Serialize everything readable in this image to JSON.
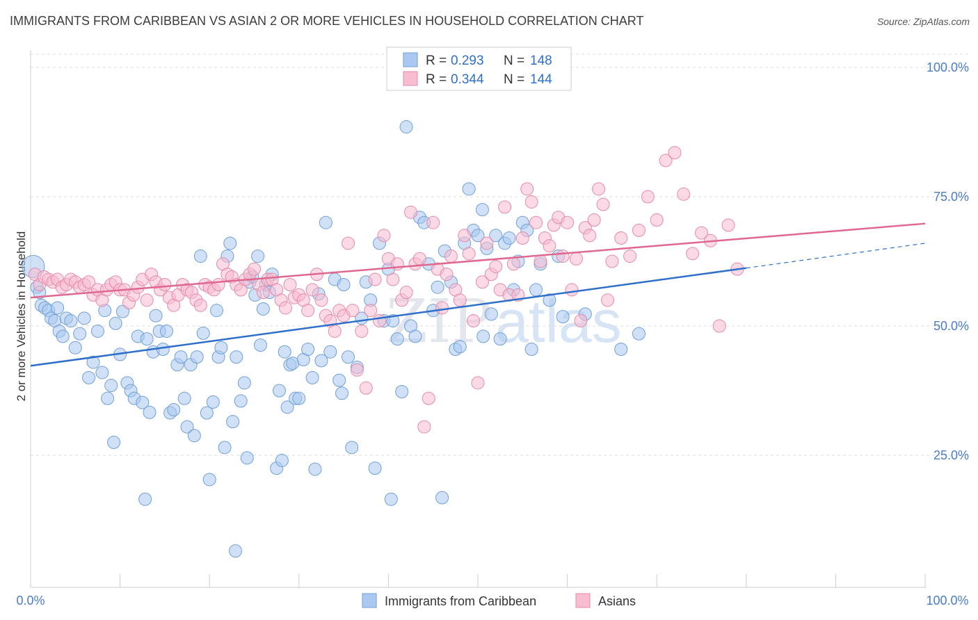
{
  "title": "IMMIGRANTS FROM CARIBBEAN VS ASIAN 2 OR MORE VEHICLES IN HOUSEHOLD CORRELATION CHART",
  "source": "Source: ZipAtlas.com",
  "watermark": {
    "part1": "ZIP",
    "part2": "atlas"
  },
  "legend": {
    "r_label": "R =",
    "n_label": "N =",
    "rows": [
      {
        "r": "0.293",
        "n": "148"
      },
      {
        "r": "0.344",
        "n": "144"
      }
    ]
  },
  "colors": {
    "blue_fill": "#aac8f0",
    "blue_stroke": "#6f9fd8",
    "blue_line": "#2f6fcc",
    "pink_fill": "#f7bcd0",
    "pink_stroke": "#e58aa8",
    "pink_line": "#e0688f",
    "tick_text": "#4a7cc9",
    "grid": "#dddddd"
  },
  "chart_data": {
    "type": "scatter",
    "title": "IMMIGRANTS FROM CARIBBEAN VS ASIAN 2 OR MORE VEHICLES IN HOUSEHOLD CORRELATION CHART",
    "xlabel": "",
    "ylabel": "2 or more Vehicles in Household",
    "xlim": [
      0,
      100
    ],
    "ylim": [
      0,
      105
    ],
    "x_tick_labels": [
      "0.0%",
      "100.0%"
    ],
    "y_ticks": [
      25,
      50,
      75,
      100
    ],
    "y_tick_labels": [
      "25.0%",
      "50.0%",
      "75.0%",
      "100.0%"
    ],
    "grid": "horizontal dashed",
    "legend_position": "top-center",
    "series": [
      {
        "name": "Immigrants from Caribbean",
        "r": 0.293,
        "n": 148,
        "trend": {
          "x0": 0,
          "y0": 42.3,
          "x1": 80,
          "y1": 61.2,
          "dash_to_x": 100,
          "dash_to_y": 66.0
        },
        "points": [
          [
            0.3,
            61.5
          ],
          [
            0.7,
            57.5
          ],
          [
            1.2,
            54
          ],
          [
            1.6,
            53.5
          ],
          [
            2,
            53
          ],
          [
            2.3,
            51.5
          ],
          [
            2.7,
            51
          ],
          [
            3.2,
            49
          ],
          [
            3.6,
            48
          ],
          [
            4,
            51.5
          ],
          [
            4.5,
            51
          ],
          [
            5,
            45.8
          ],
          [
            5.5,
            48.5
          ],
          [
            6,
            51.5
          ],
          [
            6.5,
            40
          ],
          [
            7,
            43
          ],
          [
            7.5,
            49
          ],
          [
            8,
            41
          ],
          [
            8.3,
            53
          ],
          [
            8.6,
            36
          ],
          [
            9,
            38.5
          ],
          [
            9.5,
            50.5
          ],
          [
            10,
            44.5
          ],
          [
            10.3,
            52.8
          ],
          [
            10.8,
            39
          ],
          [
            11.2,
            37.5
          ],
          [
            11.6,
            36
          ],
          [
            12,
            48
          ],
          [
            12.5,
            35.2
          ],
          [
            13,
            47.5
          ],
          [
            13.3,
            33.3
          ],
          [
            13.7,
            45
          ],
          [
            14,
            52
          ],
          [
            14.4,
            49
          ],
          [
            14.8,
            45.5
          ],
          [
            15.2,
            49
          ],
          [
            15.6,
            33.2
          ],
          [
            16,
            33.8
          ],
          [
            16.4,
            42.5
          ],
          [
            16.8,
            44
          ],
          [
            17.2,
            36
          ],
          [
            17.5,
            30.5
          ],
          [
            17.9,
            42.5
          ],
          [
            18.3,
            28.8
          ],
          [
            18.6,
            44
          ],
          [
            19,
            63.5
          ],
          [
            19.3,
            48.6
          ],
          [
            19.7,
            33.2
          ],
          [
            20,
            20.3
          ],
          [
            20.4,
            35.3
          ],
          [
            20.8,
            53
          ],
          [
            21,
            44
          ],
          [
            21.3,
            45.8
          ],
          [
            21.7,
            26.5
          ],
          [
            22,
            63.5
          ],
          [
            22.3,
            66
          ],
          [
            22.6,
            31.5
          ],
          [
            22.9,
            6.5
          ],
          [
            23,
            44
          ],
          [
            23.5,
            35.5
          ],
          [
            23.9,
            39
          ],
          [
            24.2,
            24.5
          ],
          [
            24.5,
            58.5
          ],
          [
            24.8,
            59.5
          ],
          [
            25.1,
            56
          ],
          [
            25.4,
            63.5
          ],
          [
            25.7,
            46.3
          ],
          [
            26,
            53.3
          ],
          [
            26.3,
            58
          ],
          [
            26.7,
            56.5
          ],
          [
            27,
            60
          ],
          [
            27.5,
            22.5
          ],
          [
            27.8,
            37.5
          ],
          [
            28.1,
            24
          ],
          [
            28.4,
            45
          ],
          [
            28.7,
            34.3
          ],
          [
            29,
            42.5
          ],
          [
            29.3,
            42.8
          ],
          [
            29.6,
            36
          ],
          [
            30,
            36
          ],
          [
            30.5,
            43.5
          ],
          [
            31,
            45.5
          ],
          [
            31.5,
            40
          ],
          [
            31.8,
            22.3
          ],
          [
            32.2,
            56.2
          ],
          [
            32.5,
            43.3
          ],
          [
            33,
            70
          ],
          [
            33.5,
            45
          ],
          [
            34,
            59
          ],
          [
            34.5,
            39.5
          ],
          [
            35,
            58
          ],
          [
            35.5,
            44
          ],
          [
            35.9,
            26.5
          ],
          [
            36.5,
            42
          ],
          [
            37,
            51.5
          ],
          [
            37.5,
            58.5
          ],
          [
            38,
            55
          ],
          [
            38.5,
            22.5
          ],
          [
            39,
            66
          ],
          [
            39.5,
            51
          ],
          [
            40,
            61
          ],
          [
            40.5,
            51
          ],
          [
            41,
            47.5
          ],
          [
            41.5,
            37.3
          ],
          [
            42,
            88.5
          ],
          [
            42.5,
            50
          ],
          [
            43,
            48
          ],
          [
            43.5,
            71
          ],
          [
            44,
            70
          ],
          [
            44.5,
            62
          ],
          [
            45,
            53
          ],
          [
            45.5,
            57.5
          ],
          [
            46,
            16.8
          ],
          [
            46.3,
            64.5
          ],
          [
            47,
            58.5
          ],
          [
            47.5,
            45.5
          ],
          [
            48,
            46
          ],
          [
            48.5,
            66
          ],
          [
            49,
            76.5
          ],
          [
            49.5,
            68.5
          ],
          [
            50,
            67.5
          ],
          [
            50.5,
            72.5
          ],
          [
            51,
            65
          ],
          [
            51.5,
            52.3
          ],
          [
            52,
            67.5
          ],
          [
            52.5,
            47.5
          ],
          [
            53,
            66
          ],
          [
            53.5,
            67
          ],
          [
            54,
            57
          ],
          [
            54.5,
            62.5
          ],
          [
            55,
            70
          ],
          [
            55.5,
            68.5
          ],
          [
            56,
            45.5
          ],
          [
            56.5,
            57
          ],
          [
            57,
            62
          ],
          [
            58,
            55
          ],
          [
            59,
            63.5
          ],
          [
            59.5,
            51.8
          ],
          [
            62,
            52.3
          ],
          [
            66,
            45.5
          ],
          [
            68,
            48.5
          ],
          [
            50.6,
            48
          ],
          [
            3,
            53.5
          ],
          [
            1,
            56.5
          ],
          [
            9.3,
            27.5
          ],
          [
            34.8,
            37
          ],
          [
            12.8,
            16.5
          ],
          [
            40.3,
            16.5
          ]
        ]
      },
      {
        "name": "Asians",
        "r": 0.344,
        "n": 144,
        "trend": {
          "x0": 0,
          "y0": 55.5,
          "x1": 100,
          "y1": 69.8
        },
        "points": [
          [
            0.5,
            60
          ],
          [
            1,
            58
          ],
          [
            1.5,
            59.5
          ],
          [
            2,
            59
          ],
          [
            2.5,
            58.5
          ],
          [
            3,
            59
          ],
          [
            3.5,
            57.5
          ],
          [
            4,
            58
          ],
          [
            4.5,
            59
          ],
          [
            5,
            58.5
          ],
          [
            5.5,
            57.5
          ],
          [
            6,
            58
          ],
          [
            6.5,
            58.5
          ],
          [
            7,
            56
          ],
          [
            7.5,
            57
          ],
          [
            8,
            55
          ],
          [
            8.5,
            57
          ],
          [
            9,
            58
          ],
          [
            9.5,
            58.5
          ],
          [
            10,
            57
          ],
          [
            10.5,
            57
          ],
          [
            11,
            54.5
          ],
          [
            11.5,
            56
          ],
          [
            12,
            57.5
          ],
          [
            12.5,
            59
          ],
          [
            13,
            55
          ],
          [
            13.5,
            60
          ],
          [
            14,
            58.5
          ],
          [
            14.5,
            57
          ],
          [
            15,
            58
          ],
          [
            15.5,
            55.5
          ],
          [
            16,
            54
          ],
          [
            16.5,
            56
          ],
          [
            17,
            58
          ],
          [
            17.5,
            57
          ],
          [
            18,
            56.5
          ],
          [
            18.5,
            55
          ],
          [
            19,
            54
          ],
          [
            19.5,
            58
          ],
          [
            20,
            57.5
          ],
          [
            20.5,
            57
          ],
          [
            21,
            58
          ],
          [
            21.5,
            62
          ],
          [
            22,
            60
          ],
          [
            22.5,
            59.5
          ],
          [
            23,
            58
          ],
          [
            23.5,
            57
          ],
          [
            24,
            59
          ],
          [
            24.5,
            60
          ],
          [
            25,
            61
          ],
          [
            25.5,
            58
          ],
          [
            26,
            56.5
          ],
          [
            26.5,
            59
          ],
          [
            27,
            59
          ],
          [
            27.5,
            57
          ],
          [
            28,
            55
          ],
          [
            28.5,
            53.5
          ],
          [
            29,
            58
          ],
          [
            29.5,
            55.5
          ],
          [
            30,
            56
          ],
          [
            30.5,
            55
          ],
          [
            31,
            53
          ],
          [
            31.5,
            57
          ],
          [
            32,
            60
          ],
          [
            32.5,
            55
          ],
          [
            33,
            52
          ],
          [
            33.5,
            51
          ],
          [
            34,
            49
          ],
          [
            34.5,
            53
          ],
          [
            35,
            52
          ],
          [
            35.5,
            66
          ],
          [
            36,
            53
          ],
          [
            36.5,
            41.5
          ],
          [
            37,
            49
          ],
          [
            37.5,
            38
          ],
          [
            38,
            53
          ],
          [
            38.5,
            59
          ],
          [
            39,
            51
          ],
          [
            39.5,
            67.5
          ],
          [
            40,
            63
          ],
          [
            40.5,
            59
          ],
          [
            41,
            62
          ],
          [
            41.5,
            55
          ],
          [
            42,
            56.5
          ],
          [
            42.5,
            72
          ],
          [
            43,
            62
          ],
          [
            43.5,
            63
          ],
          [
            44,
            30.5
          ],
          [
            44.5,
            36
          ],
          [
            45,
            70
          ],
          [
            45.5,
            61
          ],
          [
            46,
            53.5
          ],
          [
            46.5,
            60
          ],
          [
            47,
            63.5
          ],
          [
            47.5,
            57
          ],
          [
            48,
            55
          ],
          [
            48.5,
            67.5
          ],
          [
            49,
            64
          ],
          [
            49.5,
            51
          ],
          [
            50,
            39
          ],
          [
            50.5,
            58.5
          ],
          [
            51,
            66
          ],
          [
            51.5,
            60
          ],
          [
            52,
            61.5
          ],
          [
            52.5,
            57
          ],
          [
            53,
            73
          ],
          [
            53.5,
            56
          ],
          [
            54,
            62
          ],
          [
            54.5,
            56
          ],
          [
            55,
            67
          ],
          [
            55.5,
            76.5
          ],
          [
            56,
            74
          ],
          [
            56.5,
            70
          ],
          [
            57,
            62.5
          ],
          [
            57.5,
            67
          ],
          [
            58,
            65.5
          ],
          [
            58.5,
            69.5
          ],
          [
            59,
            71
          ],
          [
            59.5,
            63.5
          ],
          [
            60,
            70
          ],
          [
            60.5,
            57
          ],
          [
            61,
            63
          ],
          [
            61.5,
            51
          ],
          [
            62,
            69
          ],
          [
            62.5,
            67.5
          ],
          [
            63,
            70.5
          ],
          [
            63.5,
            76.5
          ],
          [
            64,
            73.5
          ],
          [
            64.5,
            55
          ],
          [
            65,
            62.5
          ],
          [
            66,
            67
          ],
          [
            67,
            63.5
          ],
          [
            68,
            68.5
          ],
          [
            69,
            75
          ],
          [
            70,
            70.5
          ],
          [
            71,
            82
          ],
          [
            72,
            83.5
          ],
          [
            73,
            75.5
          ],
          [
            74,
            64
          ],
          [
            75,
            68
          ],
          [
            76,
            66.5
          ],
          [
            77,
            50
          ],
          [
            78,
            69.5
          ],
          [
            79,
            61
          ]
        ]
      }
    ]
  },
  "bottom_legend": [
    {
      "label": "Immigrants from Caribbean"
    },
    {
      "label": "Asians"
    }
  ]
}
